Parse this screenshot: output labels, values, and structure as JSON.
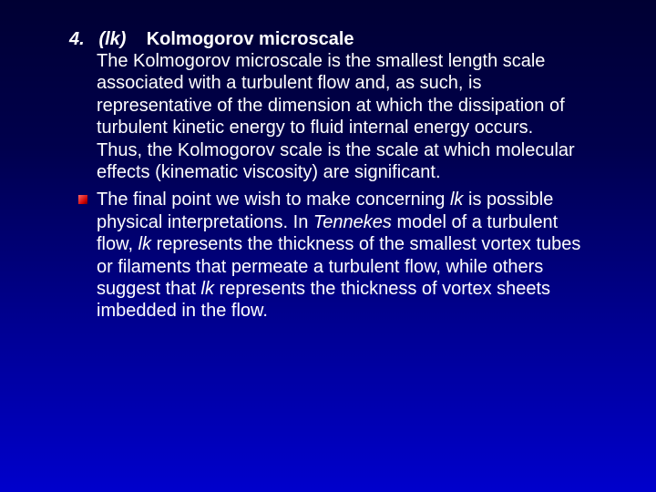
{
  "slide": {
    "background_gradient": [
      "#000033",
      "#00004d",
      "#000099",
      "#0000cc"
    ],
    "text_color": "#ffffff",
    "font_family": "Arial",
    "body_fontsize": 20,
    "line_height": 1.22,
    "bullet_color_gradient": [
      "#ff6666",
      "#cc0000",
      "#660000"
    ],
    "bullet_size": 10,
    "item": {
      "number": "4.",
      "symbol": "(lk)",
      "title": "Kolmogorov microscale",
      "paragraph1": "The Kolmogorov microscale is the smallest length scale associated with a turbulent flow and, as such, is representative of the dimension at which the dissipation of turbulent kinetic energy to fluid internal energy occurs. Thus, the Kolmogorov scale is the scale at which molecular effects (kinematic viscosity) are significant.",
      "bullet1_pre": "The final point we wish to make concerning ",
      "bullet1_lk1": "lk",
      "bullet1_mid1": " is possible physical interpretations. In ",
      "bullet1_tennekes": "Tennekes",
      "bullet1_mid2": " model of a turbulent flow, ",
      "bullet1_lk2": "lk",
      "bullet1_mid3": " represents the thickness of the smallest vortex tubes or filaments that permeate a turbulent flow, while others suggest that ",
      "bullet1_lk3": "lk",
      "bullet1_end": " represents the thickness of vortex sheets imbedded in the flow."
    }
  }
}
